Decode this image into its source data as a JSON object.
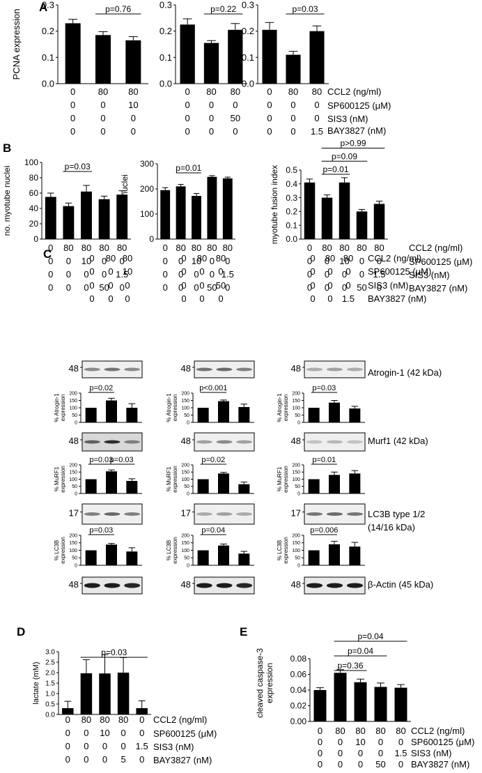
{
  "panels": {
    "A": {
      "letter": "A",
      "ylabel": "PCNA expression",
      "rows": [
        {
          "label": "CCL2 (ng/ml)"
        },
        {
          "label": "SP600125 (μM)"
        },
        {
          "label": "SIS3 (nM)"
        },
        {
          "label": "BAY3827 (nM)"
        }
      ]
    },
    "B": {
      "letter": "B",
      "rows": [
        {
          "label": "CCL2 (ng/ml)"
        },
        {
          "label": "SP600125 (μM)"
        },
        {
          "label": "SIS3 (nM)"
        },
        {
          "label": "BAY3827 (nM)"
        }
      ]
    },
    "C": {
      "letter": "C",
      "rows": [
        {
          "label": "CCL2 (ng/ml)"
        },
        {
          "label": "SP600125 (μM)"
        },
        {
          "label": "SIS3 (nM)"
        },
        {
          "label": "BAY3827 (nM)"
        }
      ],
      "columns": [
        {
          "conds": [
            [
              "0",
              "80",
              "80"
            ],
            [
              "0",
              "0",
              "10"
            ],
            [
              "0",
              "0",
              "0"
            ],
            [
              "0",
              "0",
              "0"
            ]
          ]
        },
        {
          "conds": [
            [
              "0",
              "80",
              "80"
            ],
            [
              "0",
              "0",
              "0"
            ],
            [
              "0",
              "0",
              "50"
            ],
            [
              "0",
              "0",
              "0"
            ]
          ]
        },
        {
          "conds": [
            [
              "0",
              "80",
              "80"
            ],
            [
              "0",
              "0",
              "0"
            ],
            [
              "0",
              "0",
              "0"
            ],
            [
              "0",
              "0",
              "1.5"
            ]
          ]
        }
      ],
      "blots": [
        {
          "name": "Atrogin-1 (42 kDa)",
          "marker": "48"
        },
        {
          "name": "Murf1 (42 kDa)",
          "marker": "48"
        },
        {
          "name": "LC3B type 1/2",
          "name2": "(14/16 kDa)",
          "marker": "17"
        },
        {
          "name": "β-Actin (45 kDa)",
          "marker": "48"
        }
      ],
      "quant_labels": [
        [
          "% Atrogin-1",
          "expression"
        ],
        [
          "% MuRF1",
          "expression"
        ],
        [
          "% LC3B",
          "expression"
        ]
      ]
    },
    "D": {
      "letter": "D",
      "rows": [
        {
          "label": "CCL2 (ng/ml)"
        },
        {
          "label": "SP600125 (μM)"
        },
        {
          "label": "SIS3 (nM)"
        },
        {
          "label": "BAY3827 (nM)"
        }
      ]
    },
    "E": {
      "letter": "E",
      "rows": [
        {
          "label": "CCL2 (ng/ml)"
        },
        {
          "label": "SP600125 (μM)"
        },
        {
          "label": "SIS3 (nM)"
        },
        {
          "label": "BAY3827 (nM)"
        }
      ]
    }
  },
  "chart_data": [
    {
      "id": "A1",
      "type": "bar",
      "ylabel": "PCNA expression",
      "ylim": [
        0,
        0.3
      ],
      "yticks": [
        0,
        0.1,
        0.2,
        0.3
      ],
      "categories": [
        "0",
        "80",
        "80"
      ],
      "values": [
        0.23,
        0.185,
        0.165
      ],
      "errors": [
        0.015,
        0.013,
        0.014
      ],
      "conditions": [
        [
          "0",
          "80",
          "80"
        ],
        [
          "0",
          "0",
          "10"
        ],
        [
          "0",
          "0",
          "0"
        ],
        [
          "0",
          "0",
          "0"
        ]
      ],
      "annotations": [
        {
          "text": "p=0.76",
          "from": 1,
          "to": 2,
          "level": 0
        }
      ]
    },
    {
      "id": "A2",
      "type": "bar",
      "ylim": [
        0,
        0.3
      ],
      "yticks": [
        0,
        0.1,
        0.2,
        0.3
      ],
      "categories": [
        "0",
        "80",
        "80"
      ],
      "values": [
        0.225,
        0.155,
        0.205
      ],
      "errors": [
        0.022,
        0.009,
        0.024
      ],
      "conditions": [
        [
          "0",
          "80",
          "80"
        ],
        [
          "0",
          "0",
          "0"
        ],
        [
          "0",
          "0",
          "50"
        ],
        [
          "0",
          "0",
          "0"
        ]
      ],
      "annotations": [
        {
          "text": "p=0.22",
          "from": 1,
          "to": 2,
          "level": 0
        }
      ]
    },
    {
      "id": "A3",
      "type": "bar",
      "ylim": [
        0,
        0.3
      ],
      "yticks": [
        0,
        0.1,
        0.2,
        0.3
      ],
      "categories": [
        "0",
        "80",
        "80"
      ],
      "values": [
        0.205,
        0.11,
        0.2
      ],
      "errors": [
        0.028,
        0.013,
        0.02
      ],
      "conditions": [
        [
          "0",
          "80",
          "80"
        ],
        [
          "0",
          "0",
          "0"
        ],
        [
          "0",
          "0",
          "0"
        ],
        [
          "0",
          "0",
          "1.5"
        ]
      ],
      "annotations": [
        {
          "text": "p=0.03",
          "from": 1,
          "to": 2,
          "level": 0
        }
      ]
    },
    {
      "id": "B1",
      "type": "bar",
      "ylabel": "no. myotube nuclei",
      "ylim": [
        0,
        100
      ],
      "yticks": [
        0,
        20,
        40,
        60,
        80,
        100
      ],
      "categories": [
        "0",
        "80",
        "80",
        "80",
        "80"
      ],
      "values": [
        55,
        43,
        62,
        52,
        58
      ],
      "errors": [
        5,
        4,
        8,
        4,
        5
      ],
      "conditions": [
        [
          "0",
          "80",
          "80",
          "80",
          "80"
        ],
        [
          "0",
          "0",
          "10",
          "0",
          "0"
        ],
        [
          "0",
          "0",
          "0",
          "0",
          "1.5"
        ],
        [
          "0",
          "0",
          "0",
          "50",
          "0"
        ]
      ],
      "annotations": [
        {
          "text": "p=0.03",
          "from": 1,
          "to": 2,
          "level": 0
        }
      ]
    },
    {
      "id": "B2",
      "type": "bar",
      "ylabel": "total no. nuclei",
      "ylim": [
        0,
        300
      ],
      "yticks": [
        0,
        100,
        200,
        300
      ],
      "categories": [
        "0",
        "80",
        "80",
        "80",
        "80"
      ],
      "values": [
        195,
        210,
        172,
        248,
        242
      ],
      "errors": [
        10,
        8,
        10,
        5,
        5
      ],
      "conditions": [
        [
          "0",
          "80",
          "80",
          "80",
          "80"
        ],
        [
          "0",
          "0",
          "10",
          "0",
          "0"
        ],
        [
          "0",
          "0",
          "0",
          "0",
          "1.5"
        ],
        [
          "0",
          "0",
          "0",
          "50",
          "0"
        ]
      ],
      "annotations": [
        {
          "text": "p=0.01",
          "from": 1,
          "to": 2,
          "level": 0
        }
      ]
    },
    {
      "id": "B3",
      "type": "bar",
      "ylabel": "myotube fusion index",
      "ylim": [
        0,
        0.5
      ],
      "yticks": [
        0,
        0.1,
        0.2,
        0.3,
        0.4,
        0.5
      ],
      "categories": [
        "0",
        "80",
        "80",
        "80",
        "80"
      ],
      "values": [
        0.41,
        0.3,
        0.41,
        0.2,
        0.255
      ],
      "errors": [
        0.025,
        0.02,
        0.035,
        0.015,
        0.02
      ],
      "conditions": [
        [
          "0",
          "80",
          "80",
          "80",
          "80"
        ],
        [
          "0",
          "0",
          "10",
          "0",
          "0"
        ],
        [
          "0",
          "0",
          "0",
          "0",
          "1.5"
        ],
        [
          "0",
          "0",
          "0",
          "50",
          "0"
        ]
      ],
      "annotations": [
        {
          "text": "p=0.01",
          "from": 1,
          "to": 2,
          "level": 0
        },
        {
          "text": "p=0.09",
          "from": 1,
          "to": 3,
          "level": 1
        },
        {
          "text": "p>0.99",
          "from": 1,
          "to": 4,
          "level": 2
        }
      ]
    },
    {
      "id": "C-atrogin-1",
      "type": "bar",
      "ylabel": "% Atrogin-1 expression",
      "ylim": [
        0,
        200
      ],
      "yticks": [
        0,
        50,
        100,
        150,
        200
      ],
      "categories": [
        "0",
        "80",
        "80"
      ],
      "values": [
        100,
        150,
        100
      ],
      "errors": [
        0,
        15,
        28
      ],
      "annotations": [
        {
          "text": "p=0.02",
          "from": 0,
          "to": 1,
          "level": 0
        }
      ]
    },
    {
      "id": "C-atrogin-2",
      "type": "bar",
      "ylabel": "% Atrogin-1 expression",
      "ylim": [
        0,
        200
      ],
      "yticks": [
        0,
        50,
        100,
        150,
        200
      ],
      "categories": [
        "0",
        "80",
        "80"
      ],
      "values": [
        100,
        145,
        105
      ],
      "errors": [
        0,
        8,
        20
      ],
      "annotations": [
        {
          "text": "p<0.001",
          "from": 0,
          "to": 1,
          "level": 0
        }
      ]
    },
    {
      "id": "C-atrogin-3",
      "type": "bar",
      "ylabel": "% Atrogin-1 expression",
      "ylim": [
        0,
        200
      ],
      "yticks": [
        0,
        50,
        100,
        150,
        200
      ],
      "categories": [
        "0",
        "80",
        "80"
      ],
      "values": [
        100,
        135,
        95
      ],
      "errors": [
        0,
        15,
        15
      ],
      "annotations": [
        {
          "text": "p=0.03",
          "from": 0,
          "to": 1,
          "level": 0
        }
      ]
    },
    {
      "id": "C-murf1-1",
      "type": "bar",
      "ylabel": "% MuRF1 expression",
      "ylim": [
        0,
        200
      ],
      "yticks": [
        0,
        50,
        100,
        150,
        200
      ],
      "categories": [
        "0",
        "80",
        "80"
      ],
      "values": [
        100,
        155,
        88
      ],
      "errors": [
        0,
        10,
        15
      ],
      "annotations": [
        {
          "text": "p=0.03",
          "from": 0,
          "to": 1,
          "level": 0
        },
        {
          "text": "p=0.03",
          "from": 1,
          "to": 2,
          "level": 0
        }
      ]
    },
    {
      "id": "C-murf1-2",
      "type": "bar",
      "ylabel": "% MuRF1 expression",
      "ylim": [
        0,
        200
      ],
      "yticks": [
        0,
        50,
        100,
        150,
        200
      ],
      "categories": [
        "0",
        "80",
        "80"
      ],
      "values": [
        100,
        140,
        65
      ],
      "errors": [
        0,
        8,
        15
      ],
      "annotations": [
        {
          "text": "p=0.02",
          "from": 0,
          "to": 1,
          "level": 0
        }
      ]
    },
    {
      "id": "C-murf1-3",
      "type": "bar",
      "ylabel": "% MuRF1 expression",
      "ylim": [
        0,
        200
      ],
      "yticks": [
        0,
        50,
        100,
        150,
        200
      ],
      "categories": [
        "0",
        "80",
        "80"
      ],
      "values": [
        100,
        130,
        140
      ],
      "errors": [
        0,
        20,
        20
      ],
      "annotations": [
        {
          "text": "p=0.01",
          "from": 0,
          "to": 1,
          "level": 0
        }
      ]
    },
    {
      "id": "C-lc3b-1",
      "type": "bar",
      "ylabel": "% LC3B expression",
      "ylim": [
        0,
        200
      ],
      "yticks": [
        0,
        50,
        100,
        150,
        200
      ],
      "categories": [
        "0",
        "80",
        "80"
      ],
      "values": [
        100,
        138,
        92
      ],
      "errors": [
        0,
        8,
        25
      ],
      "annotations": [
        {
          "text": "p=0.03",
          "from": 0,
          "to": 1,
          "level": 0
        }
      ]
    },
    {
      "id": "C-lc3b-2",
      "type": "bar",
      "ylabel": "% LC3B expression",
      "ylim": [
        0,
        200
      ],
      "yticks": [
        0,
        50,
        100,
        150,
        200
      ],
      "categories": [
        "0",
        "80",
        "80"
      ],
      "values": [
        100,
        132,
        78
      ],
      "errors": [
        0,
        10,
        15
      ],
      "annotations": [
        {
          "text": "p=0.04",
          "from": 0,
          "to": 1,
          "level": 0
        }
      ]
    },
    {
      "id": "C-lc3b-3",
      "type": "bar",
      "ylabel": "% LC3B expression",
      "ylim": [
        0,
        200
      ],
      "yticks": [
        0,
        50,
        100,
        150,
        200
      ],
      "categories": [
        "0",
        "80",
        "80"
      ],
      "values": [
        100,
        140,
        125
      ],
      "errors": [
        0,
        20,
        28
      ],
      "annotations": [
        {
          "text": "p=0.006",
          "from": 0,
          "to": 1,
          "level": 0
        }
      ]
    },
    {
      "id": "D",
      "type": "bar",
      "ylabel": "lactate (mM)",
      "ylim": [
        0,
        3.0
      ],
      "yticks": [
        0,
        0.5,
        1.0,
        1.5,
        2.0,
        2.5,
        3.0
      ],
      "categories": [
        "0",
        "80",
        "80",
        "80",
        "0"
      ],
      "values": [
        0.3,
        1.97,
        1.96,
        2.0,
        0.3
      ],
      "errors": [
        0.33,
        0.65,
        0.9,
        0.72,
        0.35
      ],
      "conditions": [
        [
          "0",
          "80",
          "80",
          "80",
          "0"
        ],
        [
          "0",
          "0",
          "10",
          "0",
          "0"
        ],
        [
          "0",
          "0",
          "0",
          "0",
          "1.5"
        ],
        [
          "0",
          "0",
          "0",
          "5",
          "0"
        ]
      ],
      "annotations": [
        {
          "text": "p=0.03",
          "from": 1,
          "to": 4,
          "level": 0
        }
      ]
    },
    {
      "id": "E",
      "type": "bar",
      "ylabel": "cleaved caspase-3 expression",
      "ylim": [
        0,
        0.08
      ],
      "yticks": [
        0,
        0.02,
        0.04,
        0.06,
        0.08
      ],
      "categories": [
        "0",
        "80",
        "80",
        "80",
        "80"
      ],
      "values": [
        0.04,
        0.062,
        0.05,
        0.044,
        0.043
      ],
      "errors": [
        0.003,
        0.004,
        0.004,
        0.005,
        0.004
      ],
      "conditions": [
        [
          "0",
          "80",
          "80",
          "80",
          "80"
        ],
        [
          "0",
          "0",
          "10",
          "0",
          "0"
        ],
        [
          "0",
          "0",
          "0",
          "0",
          "1.5"
        ],
        [
          "0",
          "0",
          "0",
          "50",
          "0"
        ]
      ],
      "annotations": [
        {
          "text": "p=0.36",
          "from": 1,
          "to": 2,
          "level": 0
        },
        {
          "text": "p=0.04",
          "from": 1,
          "to": 3,
          "level": 1
        },
        {
          "text": "p=0.04",
          "from": 1,
          "to": 4,
          "level": 2
        }
      ]
    }
  ]
}
